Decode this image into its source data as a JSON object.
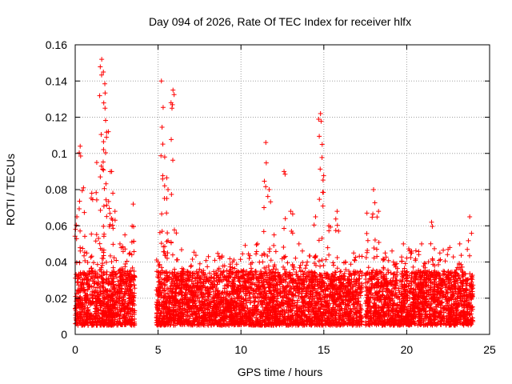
{
  "chart_data": {
    "type": "scatter",
    "title": "Day 094 of 2026, Rate Of TEC Index for receiver hlfx",
    "xlabel": "GPS time / hours",
    "ylabel": "ROTI / TECUs",
    "xlim": [
      0,
      25
    ],
    "ylim": [
      0,
      0.16
    ],
    "xticks": [
      0,
      5,
      10,
      15,
      20,
      25
    ],
    "xtick_labels": [
      "0",
      "5",
      "10",
      "15",
      "20",
      "25"
    ],
    "yticks": [
      0,
      0.02,
      0.04,
      0.06,
      0.08,
      0.1,
      0.12,
      0.14,
      0.16
    ],
    "ytick_labels": [
      "0",
      "0.02",
      "0.04",
      "0.06",
      "0.08",
      "0.1",
      "0.12",
      "0.14",
      "0.16"
    ],
    "grid": true,
    "marker": "plus",
    "series": [
      {
        "color": "#ff0000",
        "x": [
          0.1,
          0.3,
          0.5,
          0.7,
          1.0,
          1.3,
          1.6,
          1.7,
          1.8,
          2.0,
          2.2,
          2.4,
          2.7,
          3.0,
          3.3,
          3.5,
          5.0,
          5.2,
          5.4,
          5.6,
          5.9,
          6.1,
          6.5,
          7.0,
          7.5,
          8.0,
          8.5,
          9.0,
          9.5,
          10.0,
          10.5,
          11.0,
          11.5,
          11.7,
          12.0,
          12.6,
          13.0,
          13.5,
          14.0,
          14.5,
          14.8,
          14.9,
          15.3,
          15.8,
          16.3,
          16.8,
          17.2,
          17.6,
          18.0,
          18.3,
          18.7,
          19.2,
          19.8,
          20.3,
          20.9,
          21.5,
          22.0,
          22.6,
          23.2,
          23.8
        ],
        "y": [
          0.065,
          0.104,
          0.081,
          0.045,
          0.078,
          0.095,
          0.152,
          0.145,
          0.125,
          0.112,
          0.09,
          0.068,
          0.05,
          0.055,
          0.045,
          0.072,
          0.04,
          0.14,
          0.098,
          0.08,
          0.135,
          0.056,
          0.035,
          0.038,
          0.036,
          0.03,
          0.034,
          0.032,
          0.04,
          0.035,
          0.042,
          0.05,
          0.106,
          0.08,
          0.055,
          0.09,
          0.068,
          0.05,
          0.04,
          0.065,
          0.122,
          0.105,
          0.06,
          0.068,
          0.04,
          0.045,
          0.035,
          0.067,
          0.08,
          0.068,
          0.045,
          0.04,
          0.05,
          0.045,
          0.05,
          0.062,
          0.045,
          0.048,
          0.05,
          0.065
        ],
        "background_band": {
          "description_free": true,
          "segments": [
            [
              0.0,
              3.6
            ],
            [
              4.9,
              17.3
            ],
            [
              17.5,
              24.0
            ]
          ],
          "ymin": 0.005,
          "ymax": 0.035
        }
      }
    ]
  }
}
